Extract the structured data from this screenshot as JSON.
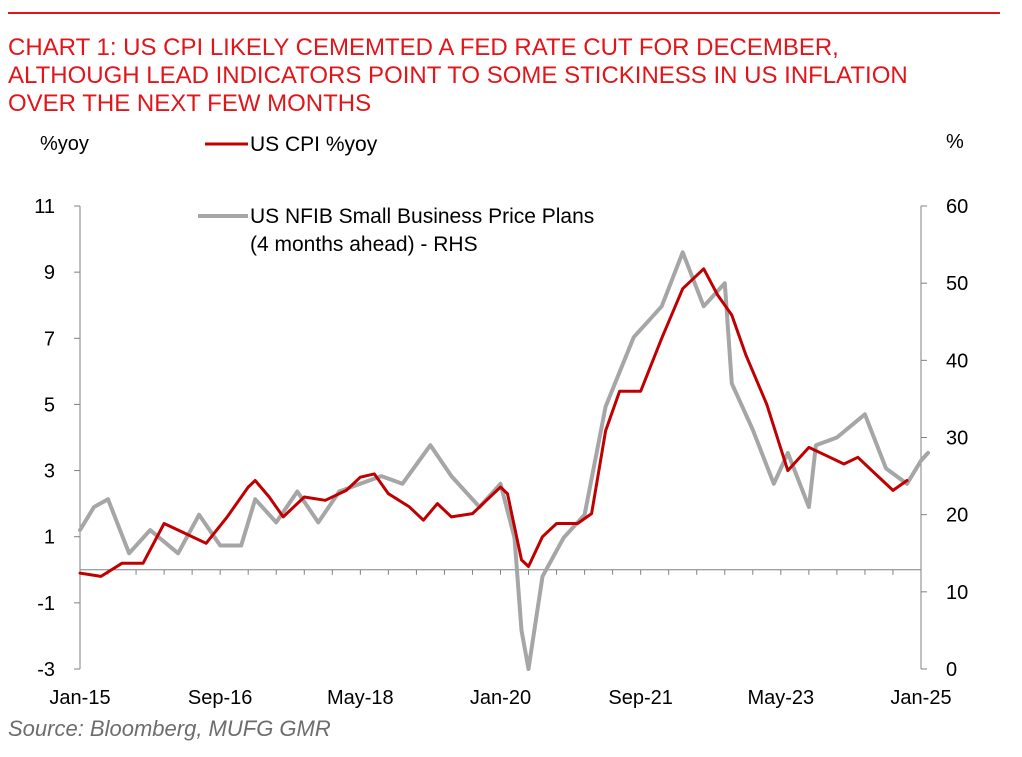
{
  "title_lines": [
    "CHART 1: US CPI LIKELY CEMEMTED A FED RATE CUT FOR DECEMBER,",
    "ALTHOUGH LEAD INDICATORS POINT TO SOME STICKINESS IN US INFLATION",
    "OVER THE NEXT FEW MONTHS"
  ],
  "source": "Source: Bloomberg, MUFG GMR",
  "colors": {
    "title": "#e0161b",
    "cpi": "#c00000",
    "nfib": "#a6a6a6",
    "axis": "#808080"
  },
  "chart_data": {
    "type": "line",
    "left_axis": {
      "unit": "%yoy",
      "min": -3,
      "max": 11,
      "ticks": [
        -3,
        -1,
        1,
        3,
        5,
        7,
        9,
        11
      ],
      "tick_labels": [
        "-3",
        "-1",
        "1",
        "3",
        "5",
        "7",
        "9",
        "11"
      ]
    },
    "right_axis": {
      "unit": "%",
      "min": 0,
      "max": 60,
      "ticks": [
        0,
        10,
        20,
        30,
        40,
        50,
        60
      ],
      "tick_labels": [
        "0",
        "10",
        "20",
        "30",
        "40",
        "50",
        "60"
      ]
    },
    "x_range": [
      "2015-01",
      "2025-01"
    ],
    "x_ticks": [
      {
        "date": "2015-01",
        "label": "Jan-15"
      },
      {
        "date": "2016-09",
        "label": "Sep-16"
      },
      {
        "date": "2018-05",
        "label": "May-18"
      },
      {
        "date": "2020-01",
        "label": "Jan-20"
      },
      {
        "date": "2021-09",
        "label": "Sep-21"
      },
      {
        "date": "2023-05",
        "label": "May-23"
      },
      {
        "date": "2025-01",
        "label": "Jan-25"
      }
    ],
    "legend": {
      "placement": "top-left"
    },
    "series": [
      {
        "name": "US CPI %yoy",
        "axis": "left",
        "color": "#c00000",
        "points": [
          [
            "2015-01",
            -0.1
          ],
          [
            "2015-04",
            -0.2
          ],
          [
            "2015-07",
            0.2
          ],
          [
            "2015-10",
            0.2
          ],
          [
            "2016-01",
            1.4
          ],
          [
            "2016-04",
            1.1
          ],
          [
            "2016-07",
            0.8
          ],
          [
            "2016-10",
            1.6
          ],
          [
            "2017-01",
            2.5
          ],
          [
            "2017-02",
            2.7
          ],
          [
            "2017-04",
            2.2
          ],
          [
            "2017-06",
            1.6
          ],
          [
            "2017-09",
            2.2
          ],
          [
            "2017-12",
            2.1
          ],
          [
            "2018-03",
            2.4
          ],
          [
            "2018-05",
            2.8
          ],
          [
            "2018-07",
            2.9
          ],
          [
            "2018-09",
            2.3
          ],
          [
            "2018-12",
            1.9
          ],
          [
            "2019-02",
            1.5
          ],
          [
            "2019-04",
            2.0
          ],
          [
            "2019-06",
            1.6
          ],
          [
            "2019-09",
            1.7
          ],
          [
            "2019-12",
            2.3
          ],
          [
            "2020-01",
            2.5
          ],
          [
            "2020-02",
            2.3
          ],
          [
            "2020-04",
            0.3
          ],
          [
            "2020-05",
            0.1
          ],
          [
            "2020-07",
            1.0
          ],
          [
            "2020-09",
            1.4
          ],
          [
            "2020-12",
            1.4
          ],
          [
            "2021-02",
            1.7
          ],
          [
            "2021-04",
            4.2
          ],
          [
            "2021-06",
            5.4
          ],
          [
            "2021-09",
            5.4
          ],
          [
            "2021-12",
            7.0
          ],
          [
            "2022-03",
            8.5
          ],
          [
            "2022-06",
            9.1
          ],
          [
            "2022-08",
            8.3
          ],
          [
            "2022-10",
            7.7
          ],
          [
            "2022-12",
            6.5
          ],
          [
            "2023-03",
            5.0
          ],
          [
            "2023-06",
            3.0
          ],
          [
            "2023-09",
            3.7
          ],
          [
            "2023-12",
            3.4
          ],
          [
            "2024-02",
            3.2
          ],
          [
            "2024-04",
            3.4
          ],
          [
            "2024-06",
            3.0
          ],
          [
            "2024-09",
            2.4
          ],
          [
            "2024-11",
            2.7
          ]
        ]
      },
      {
        "name": "US NFIB Small Business Price Plans\n(4 months  ahead) - RHS",
        "axis": "right",
        "color": "#a6a6a6",
        "points": [
          [
            "2015-01",
            18
          ],
          [
            "2015-03",
            21
          ],
          [
            "2015-05",
            22
          ],
          [
            "2015-08",
            15
          ],
          [
            "2015-11",
            18
          ],
          [
            "2016-03",
            15
          ],
          [
            "2016-06",
            20
          ],
          [
            "2016-09",
            16
          ],
          [
            "2016-12",
            16
          ],
          [
            "2017-02",
            22
          ],
          [
            "2017-05",
            19
          ],
          [
            "2017-08",
            23
          ],
          [
            "2017-11",
            19
          ],
          [
            "2018-02",
            23
          ],
          [
            "2018-05",
            24
          ],
          [
            "2018-08",
            25
          ],
          [
            "2018-11",
            24
          ],
          [
            "2019-03",
            29
          ],
          [
            "2019-06",
            25
          ],
          [
            "2019-10",
            21
          ],
          [
            "2020-01",
            24
          ],
          [
            "2020-03",
            17
          ],
          [
            "2020-04",
            5
          ],
          [
            "2020-05",
            0
          ],
          [
            "2020-07",
            12
          ],
          [
            "2020-10",
            17
          ],
          [
            "2021-01",
            20
          ],
          [
            "2021-04",
            34
          ],
          [
            "2021-08",
            43
          ],
          [
            "2021-10",
            45
          ],
          [
            "2021-12",
            47
          ],
          [
            "2022-03",
            54
          ],
          [
            "2022-06",
            47
          ],
          [
            "2022-09",
            50
          ],
          [
            "2022-10",
            37
          ],
          [
            "2023-01",
            31
          ],
          [
            "2023-04",
            24
          ],
          [
            "2023-06",
            28
          ],
          [
            "2023-09",
            21
          ],
          [
            "2023-10",
            29
          ],
          [
            "2024-01",
            30
          ],
          [
            "2024-05",
            33
          ],
          [
            "2024-08",
            26
          ],
          [
            "2024-11",
            24
          ],
          [
            "2025-01",
            27
          ],
          [
            "2025-02",
            28
          ]
        ]
      }
    ]
  }
}
